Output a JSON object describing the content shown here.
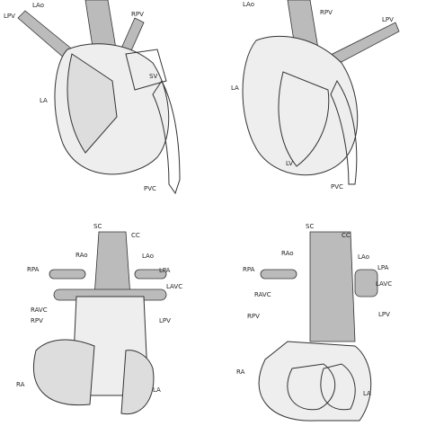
{
  "panels": [
    {
      "labels": [
        "LPV",
        "LAo",
        "RPV",
        "SV",
        "LA",
        "PVC"
      ]
    },
    {
      "labels": [
        "LAo",
        "RPV",
        "LPV",
        "LA",
        "LV",
        "PVC"
      ]
    },
    {
      "labels": [
        "SC",
        "CC",
        "RAo",
        "LAo",
        "RPA",
        "LPA",
        "LAVC",
        "RAVC",
        "RPV",
        "LPV",
        "RA",
        "LA"
      ]
    },
    {
      "labels": [
        "SC",
        "CC",
        "RAo",
        "LAo",
        "RPA",
        "LPA",
        "RAVC",
        "LAVC",
        "RPV",
        "LPV",
        "RA",
        "LA"
      ]
    }
  ]
}
